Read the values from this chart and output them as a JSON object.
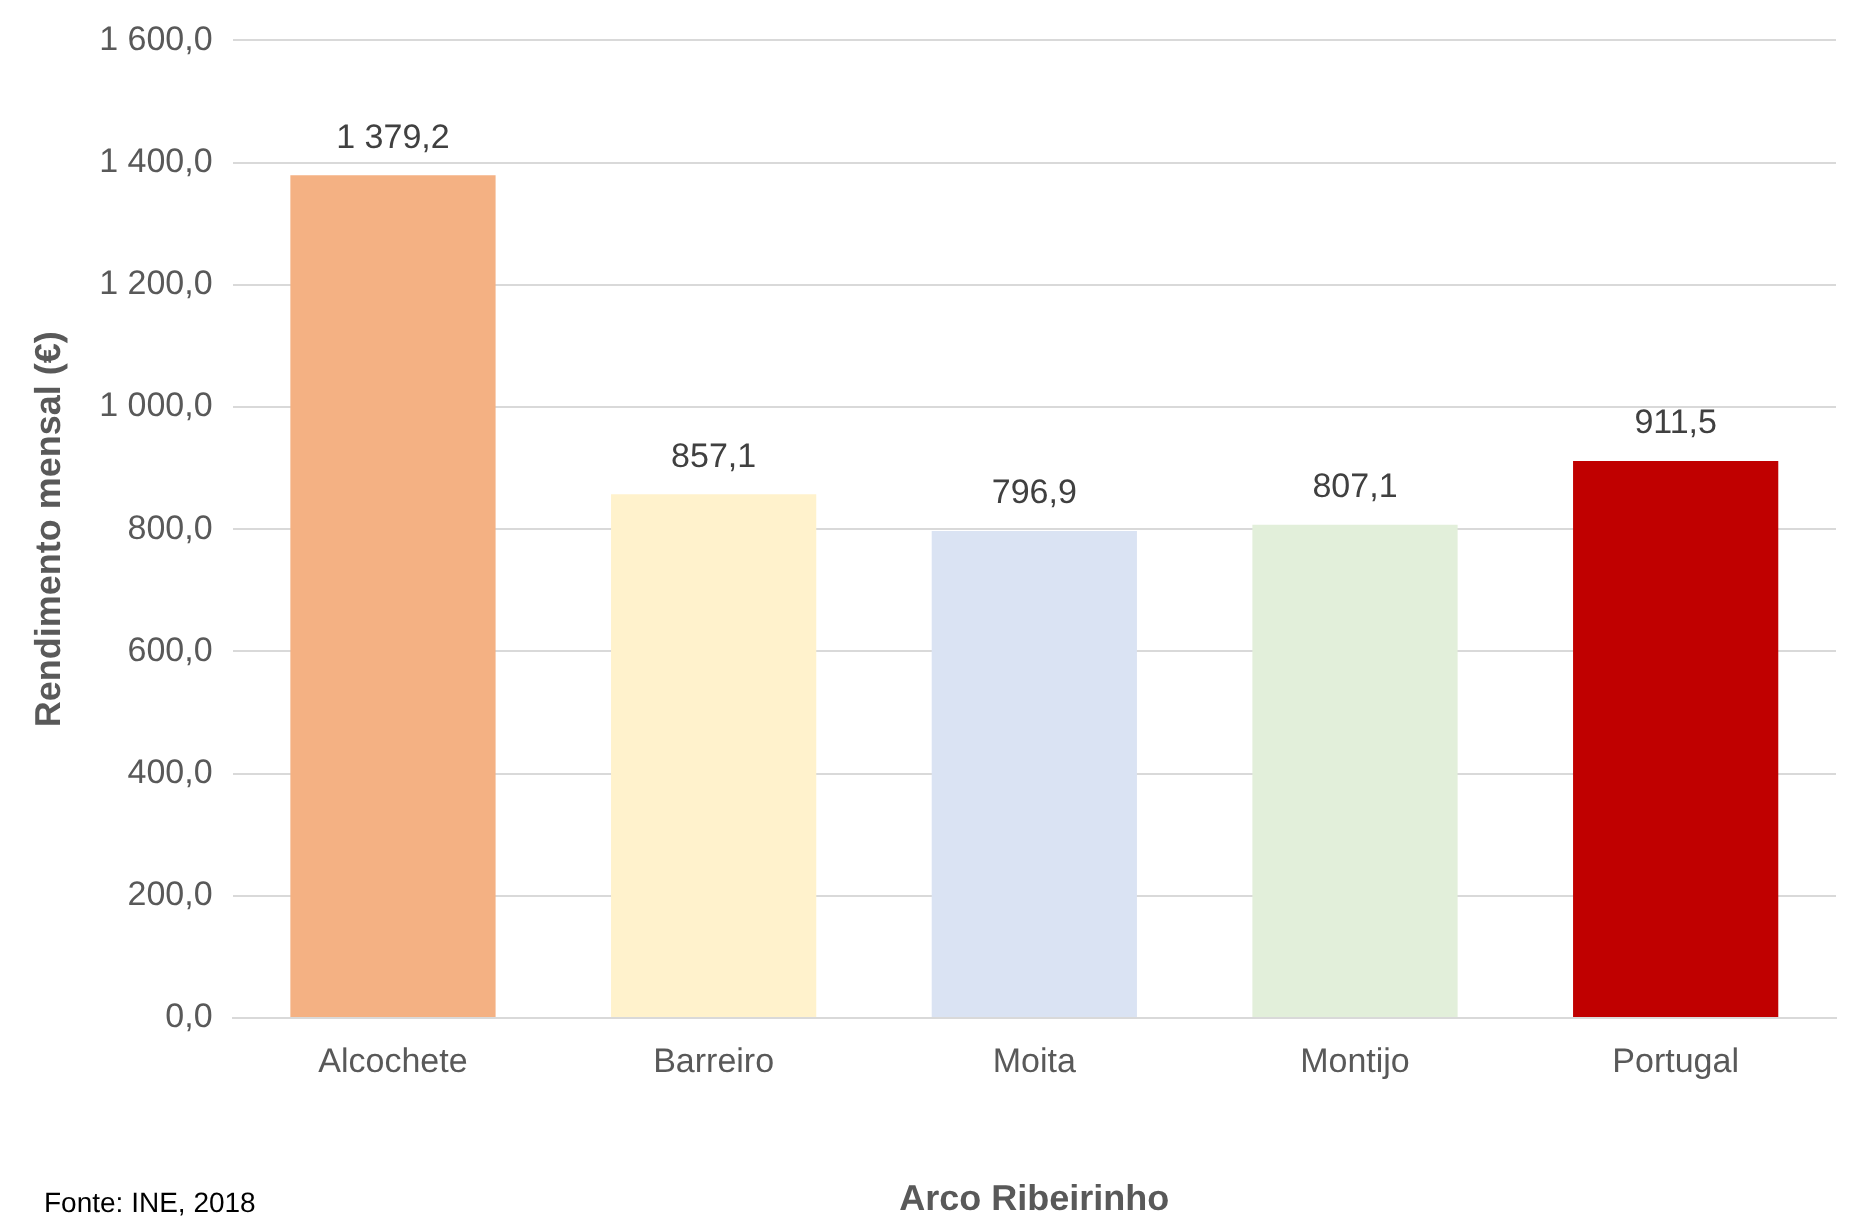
{
  "chart_data": {
    "type": "bar",
    "categories": [
      "Alcochete",
      "Barreiro",
      "Moita",
      "Montijo",
      "Portugal"
    ],
    "values": [
      1379.2,
      857.1,
      796.9,
      807.1,
      911.5
    ],
    "colors": [
      "#f4b183",
      "#fff2cc",
      "#dae3f3",
      "#e2efda",
      "#c00000"
    ],
    "value_labels": [
      "1 379,2",
      "857,1",
      "796,9",
      "807,1",
      "911,5"
    ],
    "ylim": [
      0,
      1600
    ],
    "yticks": [
      {
        "value": 0,
        "label": "0,0"
      },
      {
        "value": 200,
        "label": "200,0"
      },
      {
        "value": 400,
        "label": "400,0"
      },
      {
        "value": 600,
        "label": "600,0"
      },
      {
        "value": 800,
        "label": "800,0"
      },
      {
        "value": 1000,
        "label": "1 000,0"
      },
      {
        "value": 1200,
        "label": "1 200,0"
      },
      {
        "value": 1400,
        "label": "1 400,0"
      },
      {
        "value": 1600,
        "label": "1 600,0"
      }
    ],
    "xlabel": "Arco Ribeirinho",
    "ylabel": "Rendimento mensal (€)",
    "annotations": [
      "Fonte: INE, 2018"
    ],
    "grid": "y",
    "legend": false
  }
}
